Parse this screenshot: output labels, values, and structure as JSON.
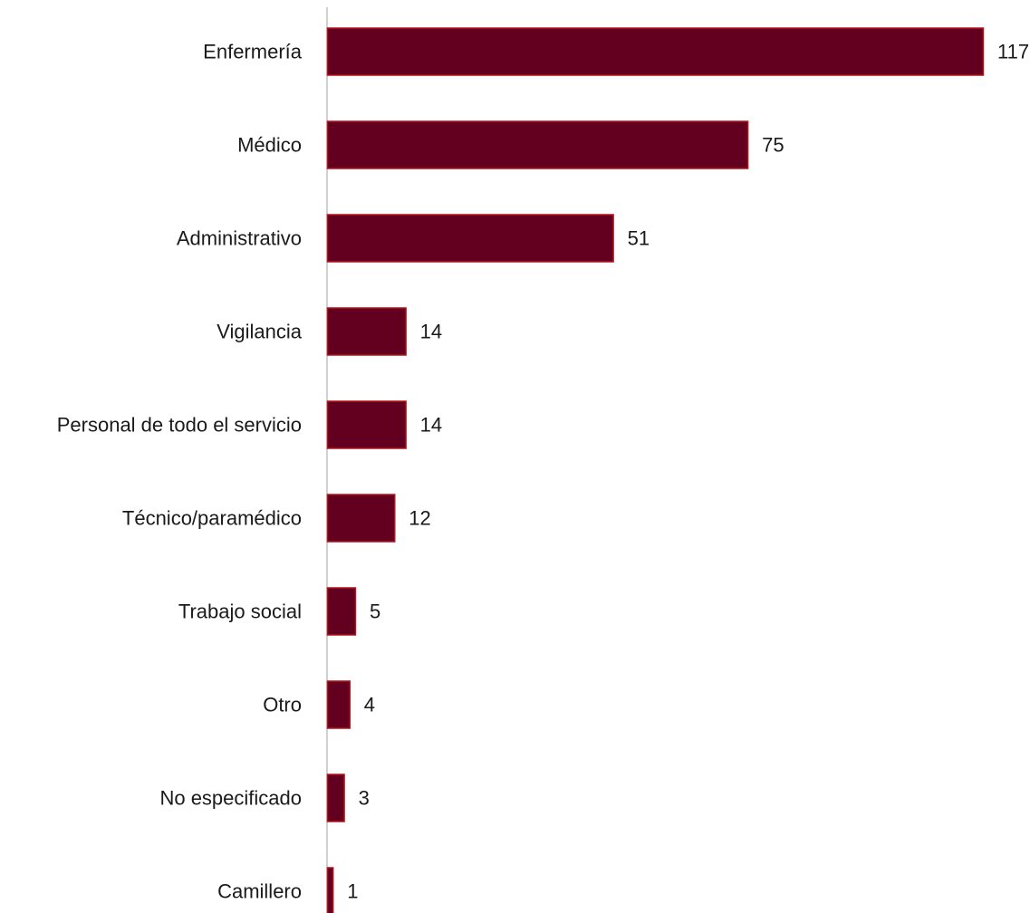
{
  "chart_data": {
    "type": "bar",
    "orientation": "horizontal",
    "title": "",
    "xlabel": "",
    "ylabel": "",
    "categories": [
      "Enfermería",
      "Médico",
      "Administrativo",
      "Vigilancia",
      "Personal de todo el servicio",
      "Técnico/paramédico",
      "Trabajo social",
      "Otro",
      "No especificado",
      "Camillero"
    ],
    "values": [
      117,
      75,
      51,
      14,
      14,
      12,
      5,
      4,
      3,
      1
    ],
    "value_labels": [
      "117",
      "75",
      "51",
      "14",
      "14",
      "12",
      "5",
      "4",
      "3",
      "1"
    ],
    "xlim": [
      0,
      117
    ],
    "grid": false,
    "legend": "none",
    "colors": {
      "bar_fill": "#63001f",
      "bar_stroke": "#b0141c",
      "axis_line": "#d0d0d0",
      "text": "#1a1a1a"
    }
  }
}
